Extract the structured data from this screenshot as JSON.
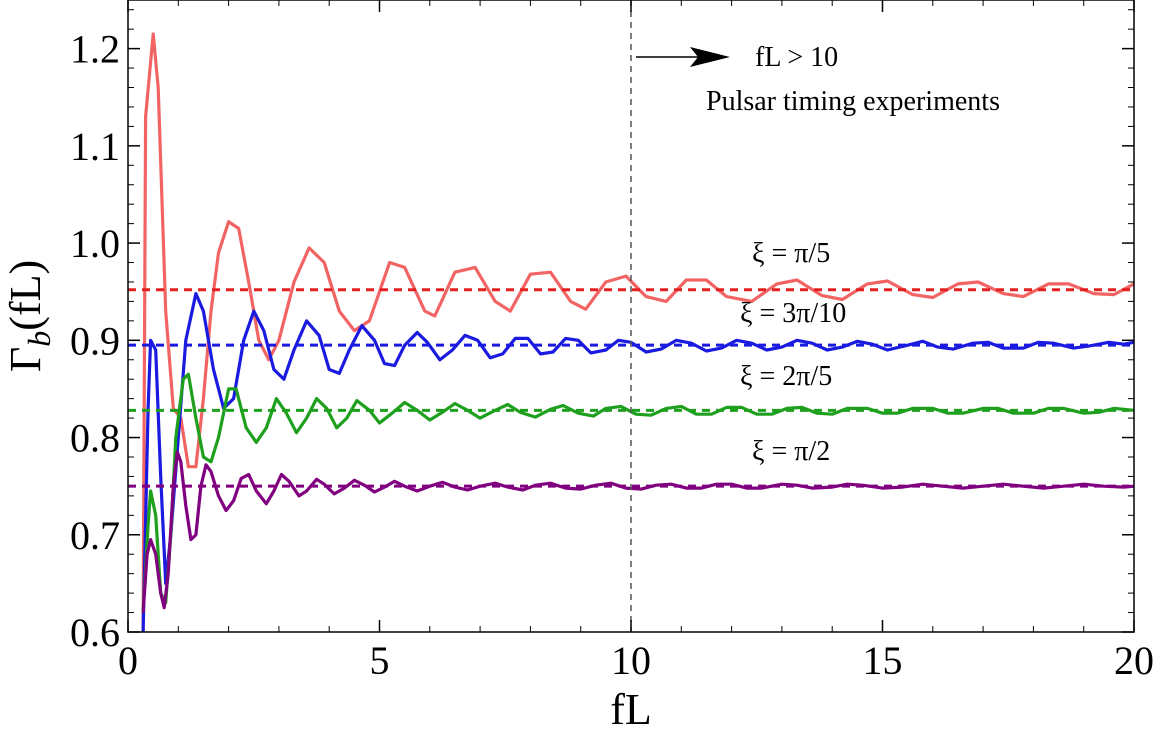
{
  "chart_data": {
    "type": "line",
    "title": "",
    "xlabel": "fL",
    "ylabel_main": "Γ",
    "ylabel_sub": "b",
    "ylabel_tail": "(fL)",
    "xlim": [
      0,
      20
    ],
    "ylim": [
      0.6,
      1.25
    ],
    "xticks": [
      0,
      5,
      10,
      15,
      20
    ],
    "yticks": [
      0.6,
      0.7,
      0.8,
      0.9,
      1.0,
      1.1,
      1.2
    ],
    "xtick_labels": [
      "0",
      "5",
      "10",
      "15",
      "20"
    ],
    "ytick_labels": [
      "0.6",
      "0.7",
      "0.8",
      "0.9",
      "1.0",
      "1.1",
      "1.2"
    ],
    "grid": false,
    "annotations": {
      "vline_x": 10,
      "arrow_text": "fL > 10",
      "region_text": "Pulsar timing experiments"
    },
    "series": [
      {
        "label": "ξ = π/5",
        "color": "#f26464",
        "dash_color": "#e32020",
        "asymptote": 0.952,
        "points": [
          [
            0.3,
            0.6
          ],
          [
            0.35,
            1.13
          ],
          [
            0.5,
            1.215
          ],
          [
            0.6,
            1.16
          ],
          [
            0.75,
            0.93
          ],
          [
            0.9,
            0.83
          ],
          [
            1.05,
            0.82
          ],
          [
            1.2,
            0.77
          ],
          [
            1.35,
            0.77
          ],
          [
            1.5,
            0.84
          ],
          [
            1.65,
            0.93
          ],
          [
            1.8,
            0.99
          ],
          [
            2.0,
            1.022
          ],
          [
            2.2,
            1.015
          ],
          [
            2.4,
            0.96
          ],
          [
            2.6,
            0.9
          ],
          [
            2.8,
            0.88
          ],
          [
            3.0,
            0.9
          ],
          [
            3.3,
            0.96
          ],
          [
            3.6,
            0.995
          ],
          [
            3.9,
            0.98
          ],
          [
            4.2,
            0.93
          ],
          [
            4.5,
            0.91
          ],
          [
            4.8,
            0.92
          ],
          [
            5.2,
            0.98
          ],
          [
            5.5,
            0.975
          ],
          [
            5.9,
            0.93
          ],
          [
            6.1,
            0.925
          ],
          [
            6.5,
            0.97
          ],
          [
            6.9,
            0.975
          ],
          [
            7.3,
            0.94
          ],
          [
            7.6,
            0.93
          ],
          [
            8.0,
            0.968
          ],
          [
            8.4,
            0.97
          ],
          [
            8.8,
            0.94
          ],
          [
            9.1,
            0.932
          ],
          [
            9.5,
            0.96
          ],
          [
            9.9,
            0.966
          ],
          [
            10.3,
            0.945
          ],
          [
            10.7,
            0.94
          ],
          [
            11.1,
            0.962
          ],
          [
            11.5,
            0.962
          ],
          [
            11.9,
            0.945
          ],
          [
            12.4,
            0.94
          ],
          [
            12.9,
            0.958
          ],
          [
            13.3,
            0.962
          ],
          [
            13.8,
            0.946
          ],
          [
            14.2,
            0.942
          ],
          [
            14.7,
            0.958
          ],
          [
            15.1,
            0.961
          ],
          [
            15.6,
            0.947
          ],
          [
            16.0,
            0.944
          ],
          [
            16.5,
            0.958
          ],
          [
            16.9,
            0.96
          ],
          [
            17.4,
            0.948
          ],
          [
            17.8,
            0.945
          ],
          [
            18.3,
            0.958
          ],
          [
            18.7,
            0.958
          ],
          [
            19.2,
            0.948
          ],
          [
            19.6,
            0.947
          ],
          [
            20.0,
            0.958
          ]
        ]
      },
      {
        "label": "ξ = 3π/10",
        "color": "#1a1ae0",
        "dash_color": "#1a1ae0",
        "asymptote": 0.895,
        "points": [
          [
            0.3,
            0.6
          ],
          [
            0.4,
            0.83
          ],
          [
            0.45,
            0.9
          ],
          [
            0.55,
            0.89
          ],
          [
            0.65,
            0.76
          ],
          [
            0.75,
            0.65
          ],
          [
            0.85,
            0.7
          ],
          [
            1.0,
            0.8
          ],
          [
            1.15,
            0.9
          ],
          [
            1.35,
            0.948
          ],
          [
            1.5,
            0.93
          ],
          [
            1.7,
            0.87
          ],
          [
            1.9,
            0.83
          ],
          [
            2.1,
            0.84
          ],
          [
            2.3,
            0.9
          ],
          [
            2.5,
            0.93
          ],
          [
            2.7,
            0.91
          ],
          [
            2.9,
            0.87
          ],
          [
            3.1,
            0.86
          ],
          [
            3.3,
            0.89
          ],
          [
            3.55,
            0.92
          ],
          [
            3.8,
            0.905
          ],
          [
            4.0,
            0.87
          ],
          [
            4.2,
            0.866
          ],
          [
            4.4,
            0.89
          ],
          [
            4.65,
            0.915
          ],
          [
            4.9,
            0.9
          ],
          [
            5.1,
            0.876
          ],
          [
            5.3,
            0.874
          ],
          [
            5.5,
            0.895
          ],
          [
            5.75,
            0.908
          ],
          [
            5.95,
            0.898
          ],
          [
            6.2,
            0.88
          ],
          [
            6.45,
            0.89
          ],
          [
            6.7,
            0.905
          ],
          [
            6.95,
            0.9
          ],
          [
            7.2,
            0.882
          ],
          [
            7.45,
            0.886
          ],
          [
            7.7,
            0.902
          ],
          [
            7.95,
            0.902
          ],
          [
            8.2,
            0.886
          ],
          [
            8.45,
            0.888
          ],
          [
            8.7,
            0.902
          ],
          [
            8.95,
            0.9
          ],
          [
            9.2,
            0.887
          ],
          [
            9.5,
            0.89
          ],
          [
            9.75,
            0.9
          ],
          [
            10.0,
            0.898
          ],
          [
            10.3,
            0.888
          ],
          [
            10.6,
            0.891
          ],
          [
            10.9,
            0.9
          ],
          [
            11.2,
            0.897
          ],
          [
            11.5,
            0.889
          ],
          [
            11.8,
            0.892
          ],
          [
            12.1,
            0.9
          ],
          [
            12.4,
            0.897
          ],
          [
            12.7,
            0.89
          ],
          [
            13.0,
            0.893
          ],
          [
            13.3,
            0.9
          ],
          [
            13.6,
            0.897
          ],
          [
            13.9,
            0.89
          ],
          [
            14.2,
            0.893
          ],
          [
            14.5,
            0.899
          ],
          [
            14.8,
            0.896
          ],
          [
            15.1,
            0.89
          ],
          [
            15.5,
            0.895
          ],
          [
            15.8,
            0.899
          ],
          [
            16.1,
            0.893
          ],
          [
            16.4,
            0.891
          ],
          [
            16.8,
            0.897
          ],
          [
            17.1,
            0.898
          ],
          [
            17.4,
            0.892
          ],
          [
            17.8,
            0.892
          ],
          [
            18.1,
            0.898
          ],
          [
            18.4,
            0.897
          ],
          [
            18.8,
            0.892
          ],
          [
            19.1,
            0.894
          ],
          [
            19.5,
            0.898
          ],
          [
            19.8,
            0.896
          ],
          [
            20.0,
            0.898
          ]
        ]
      },
      {
        "label": "ξ = 2π/5",
        "color": "#1ea01e",
        "dash_color": "#1ea01e",
        "asymptote": 0.828,
        "points": [
          [
            0.3,
            0.62
          ],
          [
            0.4,
            0.71
          ],
          [
            0.45,
            0.745
          ],
          [
            0.55,
            0.72
          ],
          [
            0.65,
            0.64
          ],
          [
            0.75,
            0.63
          ],
          [
            0.85,
            0.7
          ],
          [
            0.95,
            0.8
          ],
          [
            1.1,
            0.86
          ],
          [
            1.2,
            0.865
          ],
          [
            1.35,
            0.82
          ],
          [
            1.5,
            0.78
          ],
          [
            1.65,
            0.775
          ],
          [
            1.8,
            0.8
          ],
          [
            2.0,
            0.85
          ],
          [
            2.15,
            0.85
          ],
          [
            2.35,
            0.81
          ],
          [
            2.55,
            0.795
          ],
          [
            2.75,
            0.81
          ],
          [
            2.95,
            0.84
          ],
          [
            3.15,
            0.825
          ],
          [
            3.35,
            0.805
          ],
          [
            3.55,
            0.82
          ],
          [
            3.75,
            0.84
          ],
          [
            3.95,
            0.83
          ],
          [
            4.15,
            0.81
          ],
          [
            4.35,
            0.82
          ],
          [
            4.55,
            0.838
          ],
          [
            4.8,
            0.828
          ],
          [
            5.0,
            0.815
          ],
          [
            5.25,
            0.825
          ],
          [
            5.5,
            0.836
          ],
          [
            5.75,
            0.828
          ],
          [
            6.0,
            0.818
          ],
          [
            6.25,
            0.826
          ],
          [
            6.5,
            0.835
          ],
          [
            6.75,
            0.828
          ],
          [
            7.0,
            0.82
          ],
          [
            7.3,
            0.828
          ],
          [
            7.55,
            0.834
          ],
          [
            7.8,
            0.826
          ],
          [
            8.1,
            0.821
          ],
          [
            8.4,
            0.829
          ],
          [
            8.65,
            0.833
          ],
          [
            8.95,
            0.825
          ],
          [
            9.25,
            0.822
          ],
          [
            9.5,
            0.83
          ],
          [
            9.8,
            0.832
          ],
          [
            10.1,
            0.824
          ],
          [
            10.4,
            0.823
          ],
          [
            10.7,
            0.83
          ],
          [
            11.0,
            0.832
          ],
          [
            11.3,
            0.824
          ],
          [
            11.6,
            0.824
          ],
          [
            11.9,
            0.831
          ],
          [
            12.2,
            0.831
          ],
          [
            12.5,
            0.824
          ],
          [
            12.8,
            0.824
          ],
          [
            13.1,
            0.83
          ],
          [
            13.4,
            0.831
          ],
          [
            13.7,
            0.825
          ],
          [
            14.0,
            0.824
          ],
          [
            14.3,
            0.83
          ],
          [
            14.7,
            0.83
          ],
          [
            15.0,
            0.825
          ],
          [
            15.3,
            0.825
          ],
          [
            15.6,
            0.83
          ],
          [
            16.0,
            0.83
          ],
          [
            16.3,
            0.825
          ],
          [
            16.6,
            0.825
          ],
          [
            17.0,
            0.83
          ],
          [
            17.3,
            0.83
          ],
          [
            17.6,
            0.825
          ],
          [
            18.0,
            0.825
          ],
          [
            18.3,
            0.83
          ],
          [
            18.6,
            0.83
          ],
          [
            19.0,
            0.825
          ],
          [
            19.3,
            0.826
          ],
          [
            19.6,
            0.83
          ],
          [
            20.0,
            0.828
          ]
        ]
      },
      {
        "label": "ξ = π/2",
        "color": "#800080",
        "dash_color": "#800080",
        "asymptote": 0.75,
        "points": [
          [
            0.3,
            0.62
          ],
          [
            0.38,
            0.68
          ],
          [
            0.45,
            0.695
          ],
          [
            0.55,
            0.68
          ],
          [
            0.65,
            0.64
          ],
          [
            0.72,
            0.625
          ],
          [
            0.8,
            0.66
          ],
          [
            0.9,
            0.75
          ],
          [
            0.98,
            0.785
          ],
          [
            1.05,
            0.775
          ],
          [
            1.15,
            0.73
          ],
          [
            1.25,
            0.695
          ],
          [
            1.35,
            0.7
          ],
          [
            1.45,
            0.75
          ],
          [
            1.55,
            0.772
          ],
          [
            1.65,
            0.765
          ],
          [
            1.8,
            0.74
          ],
          [
            1.95,
            0.725
          ],
          [
            2.1,
            0.735
          ],
          [
            2.25,
            0.758
          ],
          [
            2.4,
            0.762
          ],
          [
            2.55,
            0.745
          ],
          [
            2.75,
            0.732
          ],
          [
            2.9,
            0.745
          ],
          [
            3.05,
            0.762
          ],
          [
            3.2,
            0.755
          ],
          [
            3.4,
            0.74
          ],
          [
            3.55,
            0.745
          ],
          [
            3.75,
            0.757
          ],
          [
            3.9,
            0.752
          ],
          [
            4.1,
            0.742
          ],
          [
            4.3,
            0.748
          ],
          [
            4.5,
            0.756
          ],
          [
            4.7,
            0.751
          ],
          [
            4.9,
            0.744
          ],
          [
            5.1,
            0.749
          ],
          [
            5.3,
            0.755
          ],
          [
            5.5,
            0.75
          ],
          [
            5.75,
            0.745
          ],
          [
            6.0,
            0.75
          ],
          [
            6.25,
            0.754
          ],
          [
            6.5,
            0.749
          ],
          [
            6.75,
            0.746
          ],
          [
            7.0,
            0.75
          ],
          [
            7.3,
            0.753
          ],
          [
            7.55,
            0.749
          ],
          [
            7.85,
            0.746
          ],
          [
            8.1,
            0.751
          ],
          [
            8.4,
            0.753
          ],
          [
            8.7,
            0.748
          ],
          [
            9.0,
            0.747
          ],
          [
            9.3,
            0.751
          ],
          [
            9.6,
            0.753
          ],
          [
            9.9,
            0.748
          ],
          [
            10.2,
            0.747
          ],
          [
            10.5,
            0.751
          ],
          [
            10.8,
            0.752
          ],
          [
            11.1,
            0.748
          ],
          [
            11.4,
            0.748
          ],
          [
            11.7,
            0.752
          ],
          [
            12.0,
            0.752
          ],
          [
            12.3,
            0.748
          ],
          [
            12.6,
            0.748
          ],
          [
            13.0,
            0.752
          ],
          [
            13.3,
            0.751
          ],
          [
            13.6,
            0.748
          ],
          [
            14.0,
            0.749
          ],
          [
            14.3,
            0.752
          ],
          [
            14.6,
            0.751
          ],
          [
            15.0,
            0.748
          ],
          [
            15.4,
            0.749
          ],
          [
            15.8,
            0.752
          ],
          [
            16.2,
            0.75
          ],
          [
            16.6,
            0.748
          ],
          [
            17.0,
            0.75
          ],
          [
            17.4,
            0.752
          ],
          [
            17.8,
            0.75
          ],
          [
            18.2,
            0.748
          ],
          [
            18.6,
            0.75
          ],
          [
            19.0,
            0.752
          ],
          [
            19.4,
            0.75
          ],
          [
            19.8,
            0.749
          ],
          [
            20.0,
            0.75
          ]
        ]
      }
    ]
  }
}
